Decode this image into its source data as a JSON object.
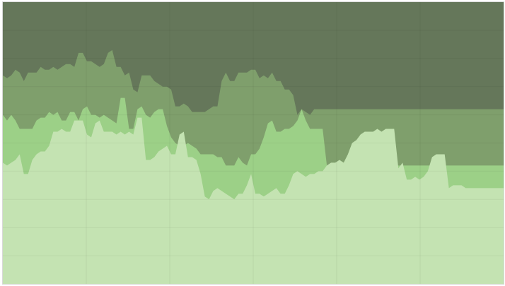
{
  "chart_data": {
    "type": "area",
    "stacked": true,
    "normalized": true,
    "ylim": [
      0,
      1
    ],
    "grid": true,
    "legend": "none",
    "title": "",
    "xlabel": "",
    "ylabel": "",
    "x": [
      0,
      1,
      2,
      3,
      4,
      5,
      6,
      7,
      8,
      9,
      10,
      11,
      12,
      13,
      14,
      15,
      16,
      17,
      18,
      19,
      20,
      21,
      22,
      23,
      24,
      25,
      26,
      27,
      28,
      29,
      30,
      31,
      32,
      33,
      34,
      35,
      36,
      37,
      38,
      39,
      40,
      41,
      42,
      43,
      44,
      45,
      46,
      47,
      48,
      49,
      50,
      51,
      52,
      53,
      54,
      55,
      56,
      57,
      58,
      59,
      60,
      61,
      62,
      63,
      64,
      65,
      66,
      67,
      68,
      69,
      70,
      71,
      72,
      73,
      74,
      75,
      76,
      77,
      78,
      79,
      80,
      81,
      82,
      83,
      84,
      85,
      86,
      87,
      88,
      89,
      90,
      91,
      92,
      93,
      94,
      95,
      96,
      97,
      98,
      99,
      100,
      101,
      102,
      103,
      104,
      105,
      106,
      107,
      108,
      109,
      110,
      111,
      112,
      113,
      114,
      115,
      116,
      117,
      118,
      119
    ],
    "series": [
      {
        "color": "#c4e3b2",
        "cumulative_top": [
          0.43,
          0.42,
          0.43,
          0.44,
          0.46,
          0.39,
          0.39,
          0.44,
          0.46,
          0.47,
          0.47,
          0.49,
          0.54,
          0.54,
          0.55,
          0.54,
          0.54,
          0.58,
          0.58,
          0.58,
          0.53,
          0.52,
          0.57,
          0.58,
          0.54,
          0.54,
          0.54,
          0.53,
          0.54,
          0.53,
          0.54,
          0.53,
          0.59,
          0.59,
          0.44,
          0.44,
          0.45,
          0.47,
          0.48,
          0.49,
          0.46,
          0.46,
          0.53,
          0.54,
          0.45,
          0.45,
          0.44,
          0.39,
          0.31,
          0.3,
          0.33,
          0.34,
          0.33,
          0.32,
          0.31,
          0.3,
          0.32,
          0.32,
          0.35,
          0.39,
          0.32,
          0.32,
          0.31,
          0.32,
          0.33,
          0.34,
          0.32,
          0.32,
          0.35,
          0.39,
          0.4,
          0.39,
          0.38,
          0.39,
          0.39,
          0.4,
          0.4,
          0.42,
          0.43,
          0.43,
          0.44,
          0.43,
          0.46,
          0.5,
          0.51,
          0.53,
          0.54,
          0.54,
          0.54,
          0.55,
          0.54,
          0.55,
          0.55,
          0.55,
          0.41,
          0.43,
          0.37,
          0.37,
          0.38,
          0.37,
          0.38,
          0.4,
          0.45,
          0.46,
          0.46,
          0.46,
          0.34,
          0.35,
          0.35,
          0.35,
          0.34,
          0.34,
          0.34,
          0.34,
          0.34,
          0.34,
          0.34,
          0.34,
          0.34,
          0.34
        ]
      },
      {
        "color": "#9cd087",
        "cumulative_top": [
          0.6,
          0.58,
          0.6,
          0.58,
          0.55,
          0.55,
          0.55,
          0.55,
          0.58,
          0.59,
          0.59,
          0.61,
          0.6,
          0.61,
          0.58,
          0.58,
          0.61,
          0.61,
          0.58,
          0.62,
          0.63,
          0.6,
          0.6,
          0.59,
          0.6,
          0.59,
          0.58,
          0.57,
          0.66,
          0.66,
          0.55,
          0.55,
          0.62,
          0.63,
          0.6,
          0.59,
          0.61,
          0.62,
          0.62,
          0.56,
          0.52,
          0.5,
          0.49,
          0.49,
          0.5,
          0.49,
          0.48,
          0.46,
          0.46,
          0.46,
          0.46,
          0.45,
          0.45,
          0.42,
          0.42,
          0.42,
          0.45,
          0.43,
          0.42,
          0.46,
          0.46,
          0.48,
          0.52,
          0.57,
          0.58,
          0.54,
          0.54,
          0.55,
          0.55,
          0.56,
          0.58,
          0.62,
          0.58,
          0.55,
          0.55,
          0.55,
          0.55,
          0.42,
          0.42,
          0.42,
          0.42,
          0.42,
          0.42,
          0.42,
          0.42,
          0.42,
          0.42,
          0.42,
          0.42,
          0.42,
          0.42,
          0.42,
          0.42,
          0.42,
          0.42,
          0.42,
          0.42,
          0.42,
          0.42,
          0.42,
          0.42,
          0.42,
          0.42,
          0.42,
          0.42,
          0.42,
          0.42,
          0.42,
          0.42,
          0.42,
          0.42,
          0.42,
          0.42,
          0.42,
          0.42,
          0.42,
          0.42,
          0.42,
          0.42,
          0.42
        ]
      },
      {
        "color": "#7f9f6c",
        "cumulative_top": [
          0.74,
          0.73,
          0.74,
          0.76,
          0.75,
          0.72,
          0.75,
          0.75,
          0.75,
          0.77,
          0.76,
          0.76,
          0.77,
          0.76,
          0.77,
          0.78,
          0.78,
          0.77,
          0.82,
          0.82,
          0.79,
          0.79,
          0.78,
          0.77,
          0.78,
          0.82,
          0.83,
          0.77,
          0.77,
          0.74,
          0.75,
          0.69,
          0.68,
          0.74,
          0.74,
          0.74,
          0.72,
          0.71,
          0.7,
          0.7,
          0.69,
          0.63,
          0.63,
          0.64,
          0.63,
          0.61,
          0.61,
          0.61,
          0.61,
          0.62,
          0.63,
          0.63,
          0.72,
          0.75,
          0.72,
          0.72,
          0.75,
          0.75,
          0.75,
          0.76,
          0.76,
          0.73,
          0.74,
          0.73,
          0.75,
          0.72,
          0.72,
          0.69,
          0.69,
          0.67,
          0.6,
          0.62,
          0.61,
          0.6,
          0.62,
          0.62,
          0.62,
          0.62,
          0.62,
          0.62,
          0.62,
          0.62,
          0.62,
          0.62,
          0.62,
          0.62,
          0.62,
          0.62,
          0.62,
          0.62,
          0.62,
          0.62,
          0.62,
          0.62,
          0.62,
          0.62,
          0.62,
          0.62,
          0.62,
          0.62,
          0.62,
          0.62,
          0.62,
          0.62,
          0.62,
          0.62,
          0.62,
          0.62,
          0.62,
          0.62,
          0.62,
          0.62,
          0.62,
          0.62,
          0.62,
          0.62,
          0.62,
          0.62,
          0.62,
          0.62
        ]
      },
      {
        "color": "#65775a",
        "cumulative_top": [
          1,
          1,
          1,
          1,
          1,
          1,
          1,
          1,
          1,
          1,
          1,
          1,
          1,
          1,
          1,
          1,
          1,
          1,
          1,
          1,
          1,
          1,
          1,
          1,
          1,
          1,
          1,
          1,
          1,
          1,
          1,
          1,
          1,
          1,
          1,
          1,
          1,
          1,
          1,
          1,
          1,
          1,
          1,
          1,
          1,
          1,
          1,
          1,
          1,
          1,
          1,
          1,
          1,
          1,
          1,
          1,
          1,
          1,
          1,
          1,
          1,
          1,
          1,
          1,
          1,
          1,
          1,
          1,
          1,
          1,
          1,
          1,
          1,
          1,
          1,
          1,
          1,
          1,
          1,
          1,
          1,
          1,
          1,
          1,
          1,
          1,
          1,
          1,
          1,
          1,
          1,
          1,
          1,
          1,
          1,
          1,
          1,
          1,
          1,
          1,
          1,
          1,
          1,
          1,
          1,
          1,
          1,
          1,
          1,
          1,
          1,
          1,
          1,
          1,
          1,
          1,
          1,
          1,
          1,
          1
        ]
      }
    ]
  }
}
